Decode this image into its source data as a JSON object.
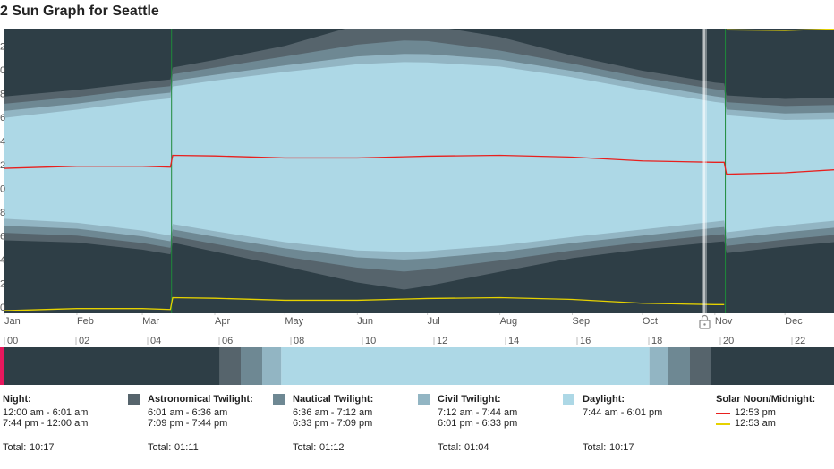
{
  "chart_data": [
    {
      "type": "sun-graph",
      "title": "2 Sun Graph for Seattle",
      "background": "#2e3e46",
      "xlim": [
        1,
        356
      ],
      "xticks": [
        {
          "value": 1,
          "label": "Jan"
        },
        {
          "value": 32,
          "label": "Feb"
        },
        {
          "value": 60,
          "label": "Mar"
        },
        {
          "value": 91,
          "label": "Apr"
        },
        {
          "value": 121,
          "label": "May"
        },
        {
          "value": 152,
          "label": "Jun"
        },
        {
          "value": 182,
          "label": "Jul"
        },
        {
          "value": 213,
          "label": "Aug"
        },
        {
          "value": 244,
          "label": "Sep"
        },
        {
          "value": 274,
          "label": "Oct"
        },
        {
          "value": 305,
          "label": "Nov"
        },
        {
          "value": 335,
          "label": "Dec"
        }
      ],
      "ylim": [
        0,
        24
      ],
      "yticks": [
        {
          "value": 22,
          "label": "2"
        },
        {
          "value": 20,
          "label": "0"
        },
        {
          "value": 18,
          "label": "8"
        },
        {
          "value": 16,
          "label": "6"
        },
        {
          "value": 14,
          "label": "4"
        },
        {
          "value": 12,
          "label": "2"
        },
        {
          "value": 10,
          "label": "0"
        },
        8,
        6,
        4,
        2,
        0
      ],
      "x": [
        1,
        32,
        60,
        72,
        73,
        91,
        121,
        152,
        172,
        182,
        213,
        244,
        274,
        305,
        309,
        310,
        335,
        356
      ],
      "bands": [
        {
          "color": "#56646c",
          "start": [
            6.15,
            5.97,
            5.37,
            4.97,
            5.95,
            5.2,
            3.95,
            2.6,
            2.0,
            2.3,
            3.5,
            4.65,
            5.4,
            6.0,
            6.07,
            5.08,
            5.62,
            6.0
          ],
          "end": [
            18.28,
            18.83,
            19.47,
            19.72,
            20.72,
            21.37,
            22.55,
            24.3,
            24.3,
            24.3,
            23.3,
            21.72,
            20.45,
            19.45,
            19.38,
            18.38,
            18.08,
            18.17
          ]
        },
        {
          "color": "#6e8893",
          "start": [
            6.78,
            6.55,
            5.92,
            5.52,
            6.5,
            5.85,
            4.78,
            3.85,
            3.52,
            3.7,
            4.45,
            5.3,
            5.98,
            6.6,
            6.67,
            5.68,
            6.22,
            6.6
          ],
          "end": [
            17.67,
            18.25,
            18.92,
            19.15,
            20.15,
            20.72,
            21.65,
            22.65,
            23.0,
            22.95,
            22.15,
            21.05,
            19.88,
            18.9,
            18.8,
            17.8,
            17.48,
            17.57
          ]
        },
        {
          "color": "#92b5c3",
          "start": [
            7.38,
            7.13,
            6.48,
            6.08,
            7.07,
            6.45,
            5.48,
            4.72,
            4.53,
            4.63,
            5.17,
            5.92,
            6.55,
            7.2,
            7.27,
            6.28,
            6.83,
            7.22
          ],
          "end": [
            17.07,
            17.68,
            18.37,
            18.6,
            19.6,
            20.1,
            20.9,
            21.65,
            21.87,
            21.85,
            21.4,
            20.43,
            19.32,
            18.3,
            18.2,
            17.18,
            16.85,
            16.93
          ]
        },
        {
          "color": "#add8e6",
          "start": [
            7.97,
            7.63,
            6.97,
            6.55,
            7.53,
            6.92,
            6.0,
            5.3,
            5.18,
            5.25,
            5.72,
            6.43,
            7.07,
            7.73,
            7.82,
            6.83,
            7.4,
            7.8
          ],
          "end": [
            16.48,
            17.17,
            17.88,
            18.12,
            19.12,
            19.62,
            20.35,
            21.0,
            21.18,
            21.15,
            20.8,
            19.9,
            18.82,
            17.82,
            17.73,
            16.7,
            16.3,
            16.37
          ]
        }
      ],
      "series": [
        {
          "color": "#e8201e",
          "values": [
            12.22,
            12.4,
            12.4,
            12.32,
            13.32,
            13.27,
            13.1,
            13.1,
            13.2,
            13.25,
            13.32,
            13.17,
            12.85,
            12.73,
            12.73,
            11.73,
            11.85,
            12.1
          ]
        },
        {
          "color": "#e6d200",
          "values": [
            0.22,
            0.4,
            0.4,
            0.32,
            1.32,
            1.27,
            1.1,
            1.1,
            1.2,
            1.25,
            1.32,
            1.17,
            0.85,
            0.73,
            0.73,
            23.9,
            23.85,
            23.97
          ]
        }
      ]
    },
    {
      "type": "timeline",
      "xlim": [
        0,
        23.175
      ],
      "xticks": [
        {
          "value": 0,
          "label": "00"
        },
        {
          "value": 2,
          "label": "02"
        },
        {
          "value": 4,
          "label": "04"
        },
        {
          "value": 6,
          "label": "06"
        },
        {
          "value": 8,
          "label": "08"
        },
        10,
        12,
        14,
        16,
        18,
        20,
        22
      ],
      "segments": [
        {
          "start": 0,
          "end": 6.017,
          "color": "#2e3e46"
        },
        {
          "start": 6.017,
          "end": 6.6,
          "color": "#56646c"
        },
        {
          "start": 6.6,
          "end": 7.2,
          "color": "#6e8893"
        },
        {
          "start": 7.2,
          "end": 7.733,
          "color": "#92b5c3"
        },
        {
          "start": 7.733,
          "end": 18.017,
          "color": "#add8e6"
        },
        {
          "start": 18.017,
          "end": 18.55,
          "color": "#92b5c3"
        },
        {
          "start": 18.55,
          "end": 19.15,
          "color": "#6e8893"
        },
        {
          "start": 19.15,
          "end": 19.733,
          "color": "#56646c"
        },
        {
          "start": 19.733,
          "end": 23.175,
          "color": "#2e3e46"
        }
      ],
      "now": 0,
      "now_color": "#e8175d"
    }
  ],
  "legend": {
    "items": [
      {
        "title": "Night:",
        "times": [
          "12:00 am - 6:01 am",
          "7:44 pm - 12:00 am"
        ],
        "total_label": "Total:",
        "total": "10:17"
      },
      {
        "title": "Astronomical Twilight:",
        "color": "#56646c",
        "times": [
          "6:01 am - 6:36 am",
          "7:09 pm - 7:44 pm"
        ],
        "total_label": "Total:",
        "total": "01:11"
      },
      {
        "title": "Nautical Twilight:",
        "color": "#6e8893",
        "times": [
          "6:36 am - 7:12 am",
          "6:33 pm - 7:09 pm"
        ],
        "total_label": "Total:",
        "total": "01:12"
      },
      {
        "title": "Civil Twilight:",
        "color": "#92b5c3",
        "times": [
          "7:12 am - 7:44 am",
          "6:01 pm - 6:33 pm"
        ],
        "total_label": "Total:",
        "total": "01:04"
      },
      {
        "title": "Daylight:",
        "color": "#add8e6",
        "times": [
          "7:44 am - 6:01 pm"
        ],
        "total_label": "Total:",
        "total": "10:17"
      }
    ],
    "solar": {
      "title": "Solar Noon/Midnight:",
      "lines": [
        {
          "color": "#e8201e",
          "label": "12:53 pm"
        },
        {
          "color": "#e6d200",
          "label": "12:53 am"
        }
      ]
    }
  }
}
